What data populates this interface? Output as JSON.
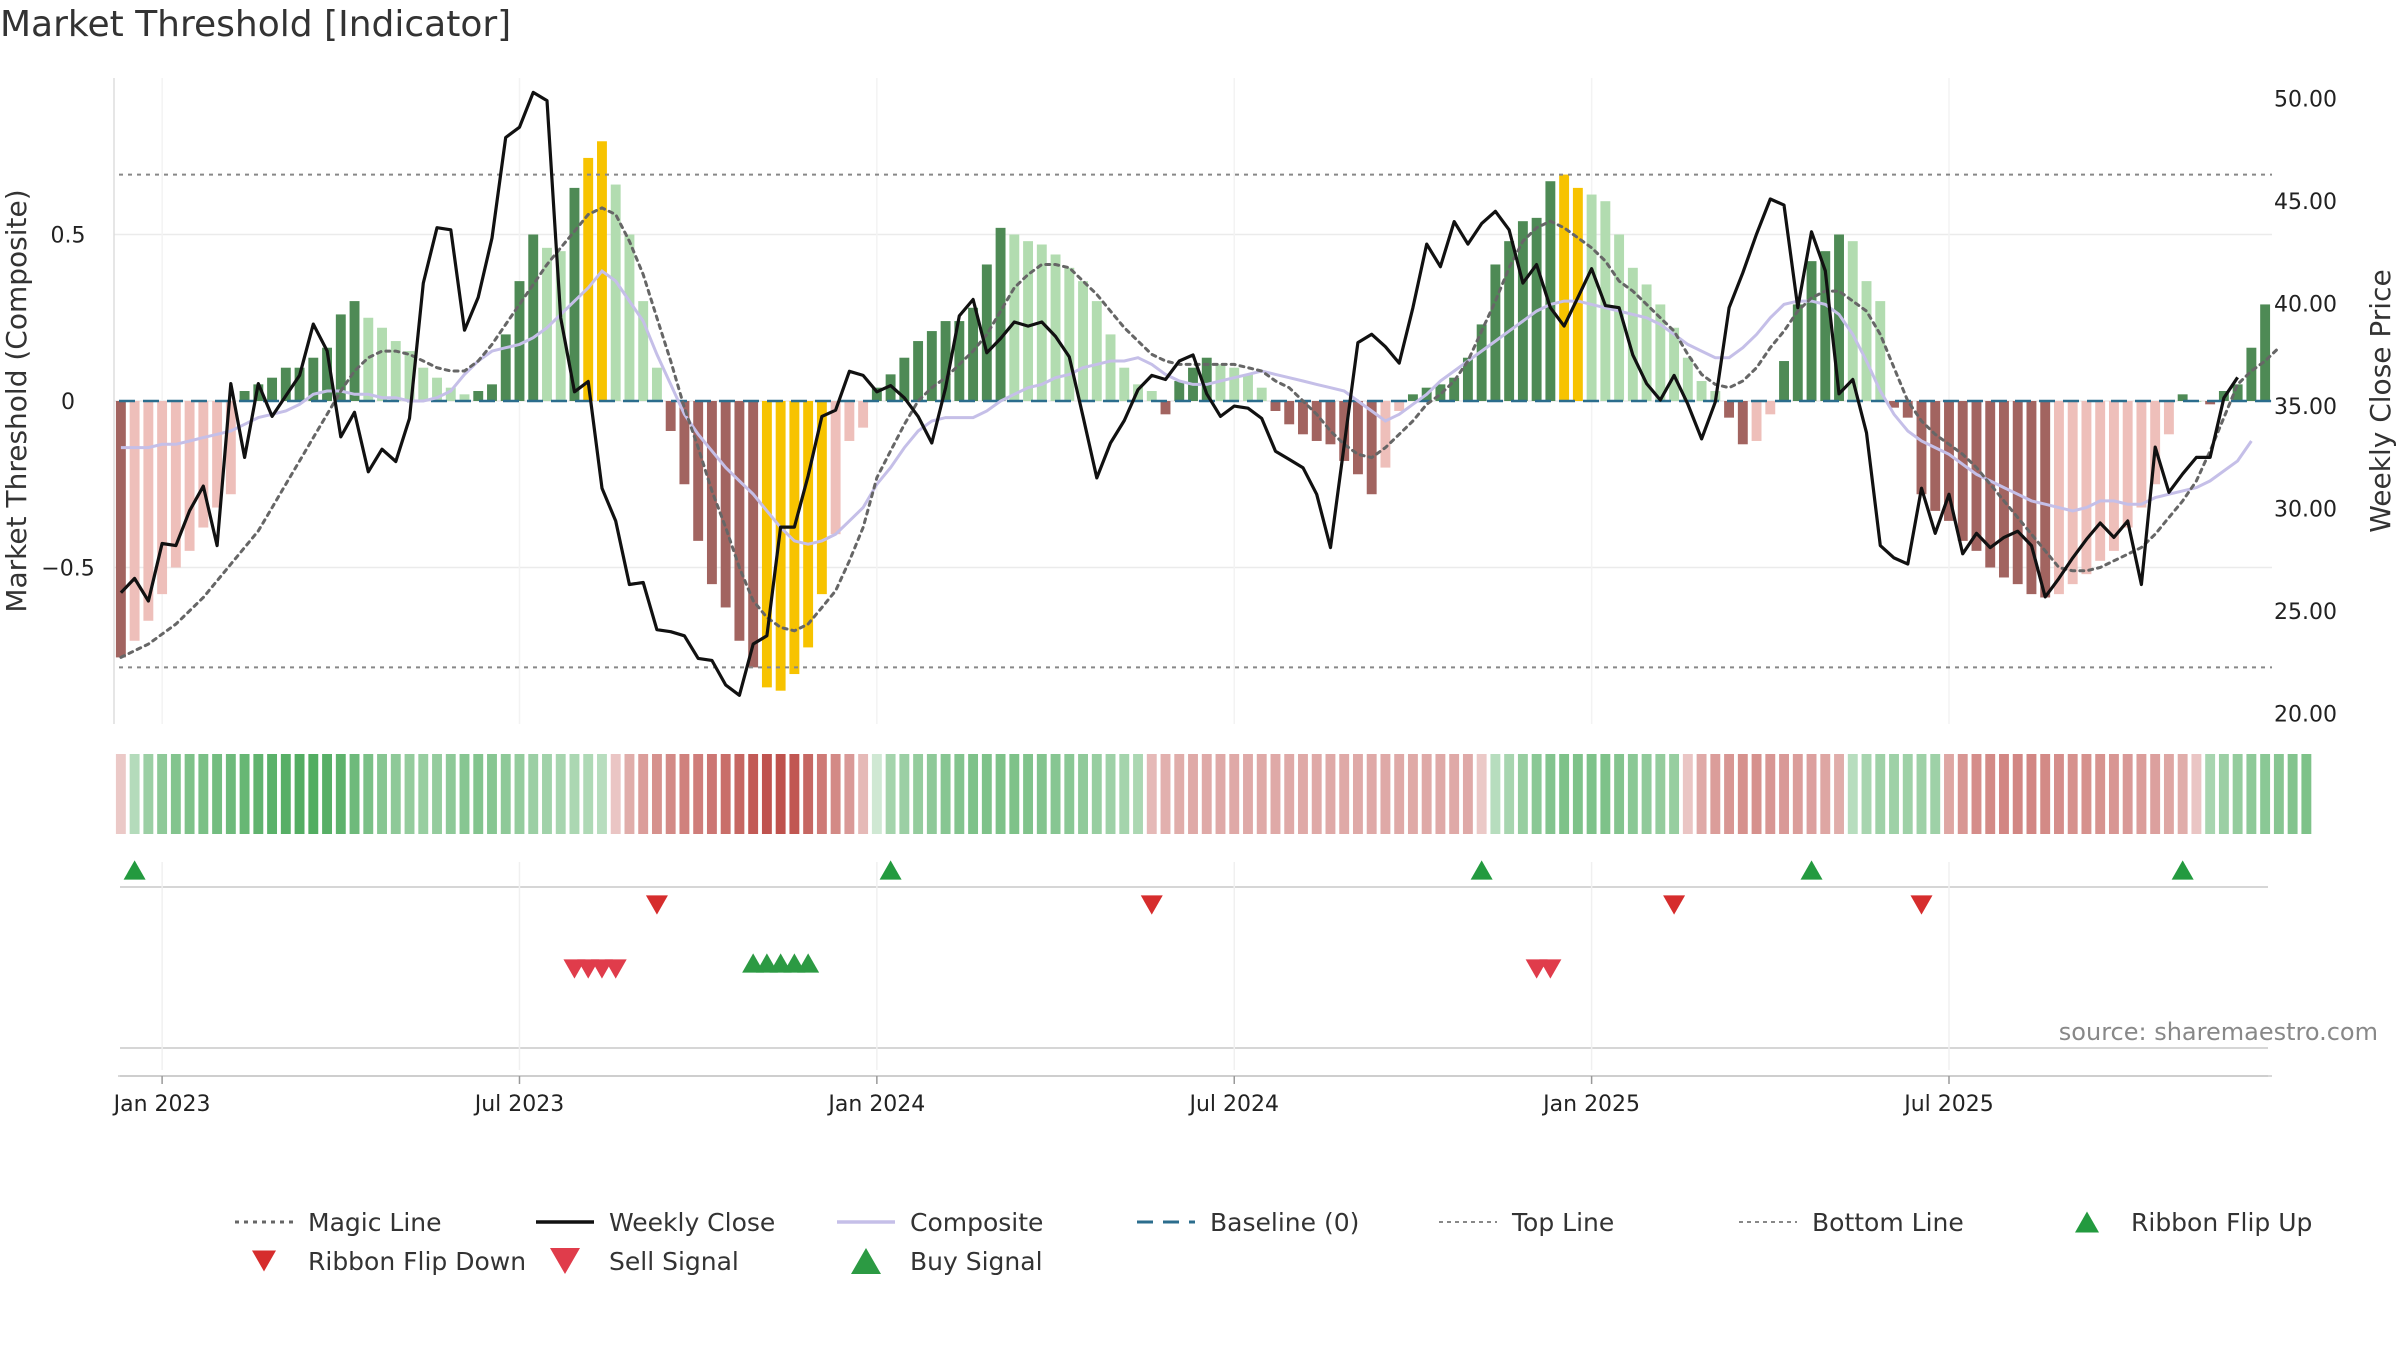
{
  "header": {
    "title": "Market Threshold [Indicator]"
  },
  "source": "source: sharemaestro.com",
  "chart_data": {
    "type": "bar",
    "title": "Market Threshold [Indicator]",
    "ylabel": "Market Threshold (Composite)",
    "ylabel_right": "Weekly Close Price",
    "ylim": [
      -0.97,
      0.97
    ],
    "ylim_right": [
      19.5,
      51.0
    ],
    "yticks": [
      {
        "v": 0.5,
        "label": "0.5"
      },
      {
        "v": 0,
        "label": "0"
      },
      {
        "v": -0.5,
        "label": "−0.5"
      }
    ],
    "yticks_right": [
      {
        "v": 50,
        "label": "50.00"
      },
      {
        "v": 45,
        "label": "45.00"
      },
      {
        "v": 40,
        "label": "40.00"
      },
      {
        "v": 35,
        "label": "35.00"
      },
      {
        "v": 30,
        "label": "30.00"
      },
      {
        "v": 25,
        "label": "25.00"
      },
      {
        "v": 20,
        "label": "20.00"
      }
    ],
    "xticks": [
      {
        "week": 3,
        "label": "Jan 2023"
      },
      {
        "week": 29,
        "label": "Jul 2023"
      },
      {
        "week": 55,
        "label": "Jan 2024"
      },
      {
        "week": 81,
        "label": "Jul 2024"
      },
      {
        "week": 107,
        "label": "Jan 2025"
      },
      {
        "week": 133,
        "label": "Jul 2025"
      }
    ],
    "grid": true,
    "legend_position": "bottom",
    "top_line": 0.68,
    "bottom_line": -0.8,
    "colors": {
      "strong_up": "#4e8a55",
      "weak_up": "#b2dcb0",
      "strong_down": "#a26460",
      "weak_down": "#eebfba",
      "extreme": "#f7c300",
      "weekly_close": "#111111",
      "composite": "#c5bfe8",
      "magic": "#666666",
      "baseline": "#2b6d8d",
      "threshold": "#888888",
      "ribbon_flip_up": "#239a3f",
      "ribbon_flip_down": "#d62d2d",
      "sell_signal": "#e03c4b",
      "buy_signal": "#2c9a43"
    },
    "bars": [
      -0.77,
      -0.72,
      -0.66,
      -0.58,
      -0.5,
      -0.45,
      -0.38,
      -0.32,
      -0.28,
      0.03,
      0.05,
      0.07,
      0.1,
      0.1,
      0.13,
      0.16,
      0.26,
      0.3,
      0.25,
      0.22,
      0.18,
      0.15,
      0.1,
      0.07,
      0.04,
      0.02,
      0.03,
      0.05,
      0.2,
      0.36,
      0.5,
      0.46,
      0.45,
      0.64,
      0.73,
      0.78,
      0.65,
      0.5,
      0.3,
      0.1,
      -0.09,
      -0.25,
      -0.42,
      -0.55,
      -0.62,
      -0.72,
      -0.8,
      -0.86,
      -0.87,
      -0.82,
      -0.74,
      -0.58,
      -0.4,
      -0.12,
      -0.08,
      0.04,
      0.08,
      0.13,
      0.18,
      0.21,
      0.24,
      0.24,
      0.28,
      0.41,
      0.52,
      0.5,
      0.48,
      0.47,
      0.44,
      0.4,
      0.36,
      0.3,
      0.2,
      0.1,
      0.05,
      0.03,
      -0.04,
      0.06,
      0.1,
      0.13,
      0.11,
      0.1,
      0.08,
      0.04,
      -0.03,
      -0.07,
      -0.1,
      -0.12,
      -0.13,
      -0.18,
      -0.22,
      -0.28,
      -0.2,
      -0.03,
      0.02,
      0.04,
      0.05,
      0.07,
      0.13,
      0.23,
      0.41,
      0.48,
      0.54,
      0.55,
      0.66,
      0.68,
      0.64,
      0.62,
      0.6,
      0.5,
      0.4,
      0.35,
      0.29,
      0.22,
      0.13,
      0.06,
      0.03,
      -0.05,
      -0.13,
      -0.12,
      -0.04,
      0.12,
      0.29,
      0.42,
      0.45,
      0.5,
      0.48,
      0.36,
      0.3,
      -0.02,
      -0.05,
      -0.28,
      -0.33,
      -0.36,
      -0.42,
      -0.45,
      -0.5,
      -0.53,
      -0.55,
      -0.58,
      -0.59,
      -0.58,
      -0.55,
      -0.52,
      -0.48,
      -0.45,
      -0.38,
      -0.32,
      -0.25,
      -0.1,
      0.02,
      0.0,
      -0.01,
      0.03,
      0.05,
      0.16,
      0.29
    ],
    "extreme_weeks": [
      34,
      35,
      47,
      48,
      49,
      50,
      51,
      105,
      106
    ],
    "weekly_close": [
      25.9,
      26.6,
      25.5,
      28.3,
      28.2,
      29.9,
      31.1,
      28.2,
      36.1,
      32.5,
      36.1,
      34.5,
      35.5,
      36.5,
      39.0,
      37.7,
      33.5,
      34.7,
      31.8,
      32.9,
      32.3,
      34.4,
      41.0,
      43.7,
      43.6,
      38.7,
      40.3,
      43.2,
      48.1,
      48.6,
      50.3,
      49.9,
      39.3,
      35.7,
      36.2,
      31.0,
      29.4,
      26.3,
      26.4,
      24.1,
      24.0,
      23.8,
      22.7,
      22.6,
      21.4,
      20.9,
      23.4,
      23.8,
      29.1,
      29.1,
      31.6,
      34.5,
      34.8,
      36.7,
      36.5,
      35.7,
      36.0,
      35.4,
      34.5,
      33.2,
      35.9,
      39.4,
      40.2,
      37.6,
      38.3,
      39.1,
      38.9,
      39.1,
      38.4,
      37.4,
      34.5,
      31.5,
      33.2,
      34.3,
      35.8,
      36.5,
      36.3,
      37.2,
      37.5,
      35.6,
      34.5,
      35.0,
      34.9,
      34.4,
      32.8,
      32.4,
      32.0,
      30.7,
      28.1,
      33.1,
      38.1,
      38.5,
      37.9,
      37.1,
      39.8,
      42.9,
      41.8,
      44.0,
      42.9,
      43.9,
      44.5,
      43.6,
      41.0,
      41.9,
      39.8,
      38.9,
      40.3,
      41.7,
      39.9,
      39.8,
      37.5,
      36.1,
      35.3,
      36.5,
      35.1,
      33.4,
      35.2,
      39.8,
      41.5,
      43.4,
      45.1,
      44.8,
      39.8,
      43.5,
      41.6,
      35.6,
      36.3,
      33.7,
      28.2,
      27.6,
      27.3,
      31.0,
      28.8,
      30.7,
      27.8,
      28.8,
      28.1,
      28.6,
      28.9,
      28.2,
      25.7,
      26.6,
      27.6,
      28.5,
      29.3,
      28.6,
      29.4,
      26.3,
      33.0,
      30.8,
      31.7,
      32.5,
      32.5,
      35.4,
      36.4
    ],
    "composite": [
      -0.14,
      -0.14,
      -0.14,
      -0.13,
      -0.13,
      -0.12,
      -0.11,
      -0.1,
      -0.09,
      -0.07,
      -0.05,
      -0.04,
      -0.03,
      -0.01,
      0.02,
      0.03,
      0.03,
      0.02,
      0.02,
      0.01,
      0.01,
      0.0,
      0.0,
      0.01,
      0.03,
      0.08,
      0.12,
      0.15,
      0.16,
      0.17,
      0.19,
      0.22,
      0.26,
      0.3,
      0.34,
      0.39,
      0.36,
      0.3,
      0.24,
      0.14,
      0.05,
      -0.04,
      -0.1,
      -0.15,
      -0.2,
      -0.24,
      -0.28,
      -0.33,
      -0.38,
      -0.42,
      -0.43,
      -0.42,
      -0.4,
      -0.36,
      -0.32,
      -0.25,
      -0.2,
      -0.14,
      -0.09,
      -0.06,
      -0.05,
      -0.05,
      -0.05,
      -0.03,
      0.0,
      0.02,
      0.04,
      0.05,
      0.07,
      0.08,
      0.1,
      0.11,
      0.12,
      0.12,
      0.13,
      0.11,
      0.08,
      0.06,
      0.05,
      0.05,
      0.06,
      0.07,
      0.08,
      0.09,
      0.08,
      0.07,
      0.06,
      0.05,
      0.04,
      0.03,
      0.0,
      -0.03,
      -0.06,
      -0.04,
      -0.01,
      0.02,
      0.06,
      0.09,
      0.12,
      0.15,
      0.18,
      0.21,
      0.24,
      0.27,
      0.29,
      0.3,
      0.3,
      0.29,
      0.28,
      0.27,
      0.26,
      0.25,
      0.23,
      0.2,
      0.17,
      0.15,
      0.13,
      0.13,
      0.16,
      0.2,
      0.25,
      0.29,
      0.3,
      0.3,
      0.29,
      0.26,
      0.2,
      0.12,
      0.03,
      -0.04,
      -0.09,
      -0.12,
      -0.14,
      -0.16,
      -0.19,
      -0.22,
      -0.24,
      -0.26,
      -0.28,
      -0.3,
      -0.31,
      -0.32,
      -0.33,
      -0.32,
      -0.3,
      -0.3,
      -0.31,
      -0.31,
      -0.29,
      -0.28,
      -0.27,
      -0.26,
      -0.24,
      -0.21,
      -0.18,
      -0.12
    ],
    "magic_line": [
      -0.77,
      -0.75,
      -0.73,
      -0.7,
      -0.67,
      -0.63,
      -0.59,
      -0.54,
      -0.49,
      -0.44,
      -0.39,
      -0.32,
      -0.25,
      -0.18,
      -0.11,
      -0.04,
      0.03,
      0.09,
      0.13,
      0.15,
      0.15,
      0.14,
      0.12,
      0.1,
      0.09,
      0.09,
      0.12,
      0.17,
      0.23,
      0.29,
      0.35,
      0.41,
      0.46,
      0.51,
      0.56,
      0.58,
      0.56,
      0.48,
      0.38,
      0.25,
      0.12,
      -0.02,
      -0.14,
      -0.27,
      -0.38,
      -0.5,
      -0.6,
      -0.65,
      -0.68,
      -0.69,
      -0.67,
      -0.62,
      -0.57,
      -0.48,
      -0.38,
      -0.23,
      -0.15,
      -0.07,
      0.0,
      0.04,
      0.07,
      0.11,
      0.15,
      0.2,
      0.27,
      0.34,
      0.38,
      0.41,
      0.41,
      0.4,
      0.36,
      0.32,
      0.27,
      0.22,
      0.18,
      0.14,
      0.12,
      0.11,
      0.11,
      0.11,
      0.11,
      0.11,
      0.1,
      0.09,
      0.06,
      0.04,
      0.0,
      -0.04,
      -0.09,
      -0.13,
      -0.16,
      -0.17,
      -0.14,
      -0.1,
      -0.06,
      -0.01,
      0.02,
      0.06,
      0.12,
      0.21,
      0.3,
      0.4,
      0.48,
      0.52,
      0.54,
      0.52,
      0.49,
      0.46,
      0.42,
      0.36,
      0.33,
      0.29,
      0.25,
      0.21,
      0.14,
      0.08,
      0.05,
      0.04,
      0.06,
      0.1,
      0.16,
      0.21,
      0.27,
      0.31,
      0.33,
      0.33,
      0.3,
      0.27,
      0.2,
      0.1,
      0.0,
      -0.06,
      -0.1,
      -0.13,
      -0.16,
      -0.2,
      -0.25,
      -0.3,
      -0.35,
      -0.4,
      -0.45,
      -0.5,
      -0.51,
      -0.51,
      -0.5,
      -0.48,
      -0.46,
      -0.44,
      -0.4,
      -0.35,
      -0.3,
      -0.24,
      -0.15,
      -0.05,
      0.05,
      0.09,
      0.12,
      0.16
    ],
    "ribbon": [
      -0.1,
      0.22,
      0.38,
      0.45,
      0.52,
      0.55,
      0.58,
      0.62,
      0.66,
      0.7,
      0.74,
      0.78,
      0.8,
      0.82,
      0.83,
      0.8,
      0.75,
      0.65,
      0.58,
      0.5,
      0.45,
      0.42,
      0.4,
      0.42,
      0.46,
      0.5,
      0.52,
      0.5,
      0.46,
      0.42,
      0.38,
      0.34,
      0.3,
      0.28,
      0.26,
      0.2,
      -0.12,
      -0.28,
      -0.38,
      -0.45,
      -0.5,
      -0.55,
      -0.58,
      -0.62,
      -0.68,
      -0.72,
      -0.8,
      -0.85,
      -0.86,
      -0.82,
      -0.72,
      -0.6,
      -0.5,
      -0.4,
      -0.2,
      0.05,
      0.32,
      0.38,
      0.42,
      0.45,
      0.5,
      0.52,
      0.55,
      0.56,
      0.56,
      0.55,
      0.54,
      0.52,
      0.5,
      0.48,
      0.44,
      0.4,
      0.36,
      0.32,
      0.28,
      -0.2,
      -0.25,
      -0.28,
      -0.3,
      -0.3,
      -0.3,
      -0.3,
      -0.3,
      -0.3,
      -0.3,
      -0.3,
      -0.3,
      -0.3,
      -0.3,
      -0.3,
      -0.3,
      -0.3,
      -0.3,
      -0.3,
      -0.3,
      -0.3,
      -0.3,
      -0.3,
      -0.3,
      -0.1,
      0.2,
      0.3,
      0.4,
      0.48,
      0.52,
      0.55,
      0.56,
      0.56,
      0.55,
      0.52,
      0.48,
      0.44,
      0.42,
      0.4,
      -0.12,
      -0.3,
      -0.38,
      -0.42,
      -0.45,
      -0.45,
      -0.42,
      -0.4,
      -0.38,
      -0.35,
      -0.32,
      -0.28,
      0.2,
      0.3,
      0.35,
      0.36,
      0.36,
      0.35,
      0.35,
      -0.32,
      -0.42,
      -0.48,
      -0.5,
      -0.52,
      -0.52,
      -0.52,
      -0.5,
      -0.48,
      -0.46,
      -0.45,
      -0.44,
      -0.42,
      -0.4,
      -0.38,
      -0.35,
      -0.32,
      -0.28,
      -0.12,
      0.3,
      0.38,
      0.42,
      0.45,
      0.48,
      0.5,
      0.52,
      0.55
    ],
    "ribbon_flip_up_weeks": [
      1,
      56,
      99,
      123,
      150
    ],
    "ribbon_flip_down_weeks": [
      39,
      75,
      113,
      131
    ],
    "sell_signal_weeks": [
      33,
      34,
      35,
      36,
      103,
      104
    ],
    "buy_signal_weeks": [
      46,
      47,
      48,
      49,
      50
    ],
    "legend": [
      {
        "label": "Magic Line",
        "kind": "dotted",
        "color": "#666666"
      },
      {
        "label": "Weekly Close",
        "kind": "solid",
        "color": "#111111"
      },
      {
        "label": "Composite",
        "kind": "solid",
        "color": "#c5bfe8"
      },
      {
        "label": "Baseline (0)",
        "kind": "dashed",
        "color": "#2b6d8d"
      },
      {
        "label": "Top Line",
        "kind": "dashed-thin",
        "color": "#888888"
      },
      {
        "label": "Bottom Line",
        "kind": "dashed-thin",
        "color": "#888888"
      },
      {
        "label": "Ribbon Flip Up",
        "kind": "tri-up",
        "color": "#239a3f"
      },
      {
        "label": "Ribbon Flip Down",
        "kind": "tri-down-small",
        "color": "#d62d2d"
      },
      {
        "label": "Sell Signal",
        "kind": "tri-down",
        "color": "#e03c4b"
      },
      {
        "label": "Buy Signal",
        "kind": "tri-up-big",
        "color": "#2c9a43"
      }
    ]
  }
}
